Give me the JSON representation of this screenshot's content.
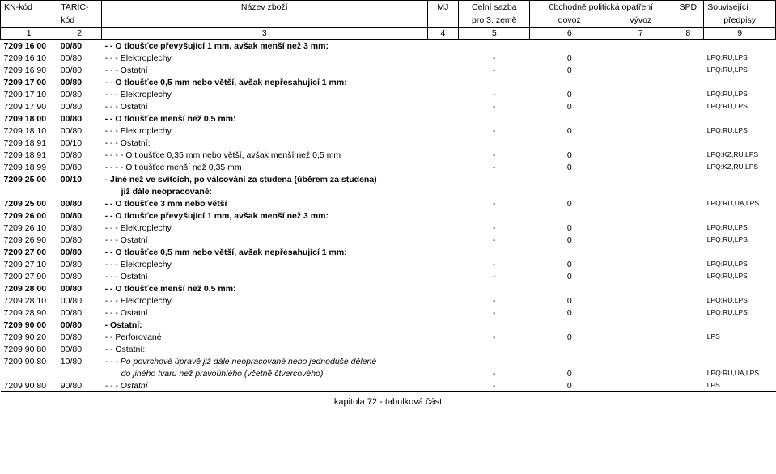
{
  "header": {
    "kn_kod": "KN-kód",
    "taric": "TARIC-",
    "kod": "kód",
    "nazev": "Název zboží",
    "mj": "MJ",
    "sazba1": "Celní sazba",
    "sazba2": "pro 3. země",
    "opatreni": "0bchodně politická opatření",
    "dovoz": "dovoz",
    "vyvoz": "vývoz",
    "spd": "SPD",
    "pred1": "Související",
    "pred2": "předpisy",
    "n1": "1",
    "n2": "2",
    "n3": "3",
    "n4": "4",
    "n5": "5",
    "n6": "6",
    "n7": "7",
    "n8": "8",
    "n9": "9"
  },
  "rows": [
    {
      "kn": "7209 16 00",
      "taric": "00/80",
      "desc": "- - O tloušťce převyšující 1 mm, avšak menší než 3 mm:",
      "sazba": "",
      "dovoz": "",
      "pred": "",
      "bold": true
    },
    {
      "kn": "7209 16 10",
      "taric": "00/80",
      "desc": "- - - Elektroplechy",
      "sazba": "-",
      "dovoz": "0",
      "pred": "LPQ:RU,LPS"
    },
    {
      "kn": "7209 16 90",
      "taric": "00/80",
      "desc": "- - - Ostatní",
      "sazba": "-",
      "dovoz": "0",
      "pred": "LPQ:RU,LPS"
    },
    {
      "kn": "7209 17 00",
      "taric": "00/80",
      "desc": "- - O tloušťce 0,5 mm nebo větší, avšak nepřesahující 1 mm:",
      "sazba": "",
      "dovoz": "",
      "pred": "",
      "bold": true
    },
    {
      "kn": "7209 17 10",
      "taric": "00/80",
      "desc": "- - - Elektroplechy",
      "sazba": "-",
      "dovoz": "0",
      "pred": "LPQ:RU,LPS"
    },
    {
      "kn": "7209 17 90",
      "taric": "00/80",
      "desc": "- - - Ostatní",
      "sazba": "-",
      "dovoz": "0",
      "pred": "LPQ:RU,LPS"
    },
    {
      "kn": "7209 18 00",
      "taric": "00/80",
      "desc": "- - O tloušťce menší než 0,5 mm:",
      "sazba": "",
      "dovoz": "",
      "pred": "",
      "bold": true
    },
    {
      "kn": "7209 18 10",
      "taric": "00/80",
      "desc": "- - - Elektroplechy",
      "sazba": "-",
      "dovoz": "0",
      "pred": "LPQ:RU,LPS"
    },
    {
      "kn": "7209 18 91",
      "taric": "00/10",
      "desc": "- - - Ostatní:",
      "sazba": "",
      "dovoz": "",
      "pred": ""
    },
    {
      "kn": "7209 18 91",
      "taric": "00/80",
      "desc": "- - - - O tloušťce 0,35 mm nebo větší, avšak menší než 0,5 mm",
      "sazba": "-",
      "dovoz": "0",
      "pred": "LPQ:KZ,RU,LPS"
    },
    {
      "kn": "7209 18 99",
      "taric": "00/80",
      "desc": "- - - - O tloušťce menší než 0,35 mm",
      "sazba": "-",
      "dovoz": "0",
      "pred": "LPQ:KZ,RU,LPS"
    },
    {
      "kn": "7209 25 00",
      "taric": "00/10",
      "desc": "- Jiné než ve svitcích, po válcování za studena (úběrem za studena)",
      "sazba": "",
      "dovoz": "",
      "pred": "",
      "bold": true
    },
    {
      "kn": "",
      "taric": "",
      "desc": "již dále neopracované:",
      "sazba": "",
      "dovoz": "",
      "pred": "",
      "bold": true,
      "indent": true
    },
    {
      "kn": "7209 25 00",
      "taric": "00/80",
      "desc": "- - O tloušťce 3 mm nebo větší",
      "sazba": "-",
      "dovoz": "0",
      "pred": "LPQ:RU,UA,LPS",
      "bold": true
    },
    {
      "kn": "7209 26 00",
      "taric": "00/80",
      "desc": "- - O tloušťce převyšující 1 mm, avšak menší než 3 mm:",
      "sazba": "",
      "dovoz": "",
      "pred": "",
      "bold": true
    },
    {
      "kn": "7209 26 10",
      "taric": "00/80",
      "desc": "- - - Elektroplechy",
      "sazba": "-",
      "dovoz": "0",
      "pred": "LPQ:RU,LPS"
    },
    {
      "kn": "7209 26 90",
      "taric": "00/80",
      "desc": "- - - Ostatní",
      "sazba": "-",
      "dovoz": "0",
      "pred": "LPQ:RU,LPS"
    },
    {
      "kn": "7209 27 00",
      "taric": "00/80",
      "desc": "- - O tloušťce 0,5 mm nebo větší, avšak nepřesahující 1 mm:",
      "sazba": "",
      "dovoz": "",
      "pred": "",
      "bold": true
    },
    {
      "kn": "7209 27 10",
      "taric": "00/80",
      "desc": "- - - Elektroplechy",
      "sazba": "-",
      "dovoz": "0",
      "pred": "LPQ:RU,LPS"
    },
    {
      "kn": "7209 27 90",
      "taric": "00/80",
      "desc": "- - - Ostatní",
      "sazba": "-",
      "dovoz": "0",
      "pred": "LPQ:RU,LPS"
    },
    {
      "kn": "7209 28 00",
      "taric": "00/80",
      "desc": "- - O tloušťce menší než 0,5 mm:",
      "sazba": "",
      "dovoz": "",
      "pred": "",
      "bold": true
    },
    {
      "kn": "7209 28 10",
      "taric": "00/80",
      "desc": "- - - Elektroplechy",
      "sazba": "-",
      "dovoz": "0",
      "pred": "LPQ:RU,LPS"
    },
    {
      "kn": "7209 28 90",
      "taric": "00/80",
      "desc": "- - - Ostatní",
      "sazba": "-",
      "dovoz": "0",
      "pred": "LPQ:RU,LPS"
    },
    {
      "kn": "7209 90 00",
      "taric": "00/80",
      "desc": "- Ostatní:",
      "sazba": "",
      "dovoz": "",
      "pred": "",
      "bold": true
    },
    {
      "kn": "7209 90 20",
      "taric": "00/80",
      "desc": "- - Perforované",
      "sazba": "-",
      "dovoz": "0",
      "pred": "LPS"
    },
    {
      "kn": "7209 90 80",
      "taric": "00/80",
      "desc": "- - Ostatní:",
      "sazba": "",
      "dovoz": "",
      "pred": ""
    },
    {
      "kn": "7209 90 80",
      "taric": "10/80",
      "desc": "- - - Po povrchové úpravě již dále neopracované nebo jednoduše dělené",
      "sazba": "",
      "dovoz": "",
      "pred": "",
      "italic": true
    },
    {
      "kn": "",
      "taric": "",
      "desc": "do jiného tvaru než pravoúhlého (včetně čtvercového)",
      "sazba": "-",
      "dovoz": "0",
      "pred": "LPQ:RU,UA,LPS",
      "italic": true,
      "indent": true
    },
    {
      "kn": "7209 90 80",
      "taric": "90/80",
      "desc": "- - - Ostatní",
      "sazba": "-",
      "dovoz": "0",
      "pred": "LPS",
      "italic": true,
      "lastrow": true
    }
  ],
  "footer": "kapitola 72 - tabulková část"
}
